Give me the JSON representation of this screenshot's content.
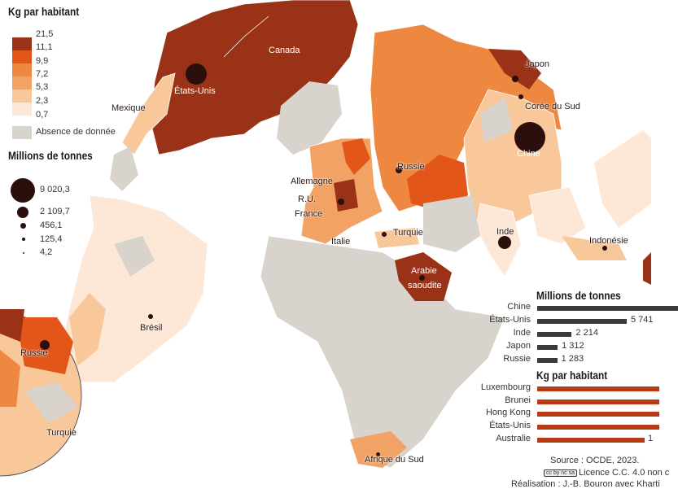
{
  "colors": {
    "c21_5": "#993216",
    "c11_1": "#e2561a",
    "c9_9": "#ee8840",
    "c7_2": "#f2a264",
    "c5_3": "#f8c89a",
    "c2_3": "#fde7d6",
    "no_data": "#d8d3cc",
    "bubble": "#2b0f0c",
    "bar_tonnes": "#3a3a3a",
    "bar_kg": "#b83a14"
  },
  "legend_kg": {
    "title": "Kg par habitant",
    "breaks": [
      "21,5",
      "11,1",
      "9,9",
      "7,2",
      "5,3",
      "2,3",
      "0,7"
    ],
    "no_data": "Absence de donnée"
  },
  "legend_tonnes": {
    "title": "Millions de tonnes",
    "values": [
      "9 020,3",
      "2 109,7",
      "456,1",
      "125,4",
      "4,2"
    ]
  },
  "map_labels": {
    "canada": "Canada",
    "usa": "États-Unis",
    "mexique": "Mexique",
    "japon": "Japon",
    "coree": "Corée du Sud",
    "chine": "Chine",
    "russie": "Russie",
    "allemagne": "Allemagne",
    "ru": "R.U.",
    "france": "France",
    "italie": "Italie",
    "turquie": "Turquie",
    "inde": "Inde",
    "indonesie": "Indonésie",
    "arabie1": "Arabie",
    "arabie2": "saoudite",
    "bresil": "Brésil",
    "afrique_sud": "Afrique du Sud",
    "inset_russie": "Russie",
    "inset_turquie": "Turquie"
  },
  "chart_data": [
    {
      "type": "bar",
      "title": "Millions de tonnes",
      "categories": [
        "Chine",
        "États-Unis",
        "Inde",
        "Japon",
        "Russie"
      ],
      "values": [
        9020.3,
        5741,
        2214,
        1312,
        1283
      ],
      "value_labels": [
        "",
        "5 741",
        "2 214",
        "1 312",
        "1 283"
      ]
    },
    {
      "type": "bar",
      "title": "Kg par habitant",
      "categories": [
        "Luxembourg",
        "Brunei",
        "Hong Kong",
        "États-Unis",
        "Australie"
      ],
      "value_labels": [
        "",
        "",
        "",
        "",
        "1"
      ]
    }
  ],
  "source": {
    "line1": "Source : OCDE, 2023.",
    "line2": "Licence C.C. 4.0 non c",
    "line3": "Réalisation : J.-B. Bouron avec Kharti",
    "cc_badge": "cc by nc sa"
  }
}
